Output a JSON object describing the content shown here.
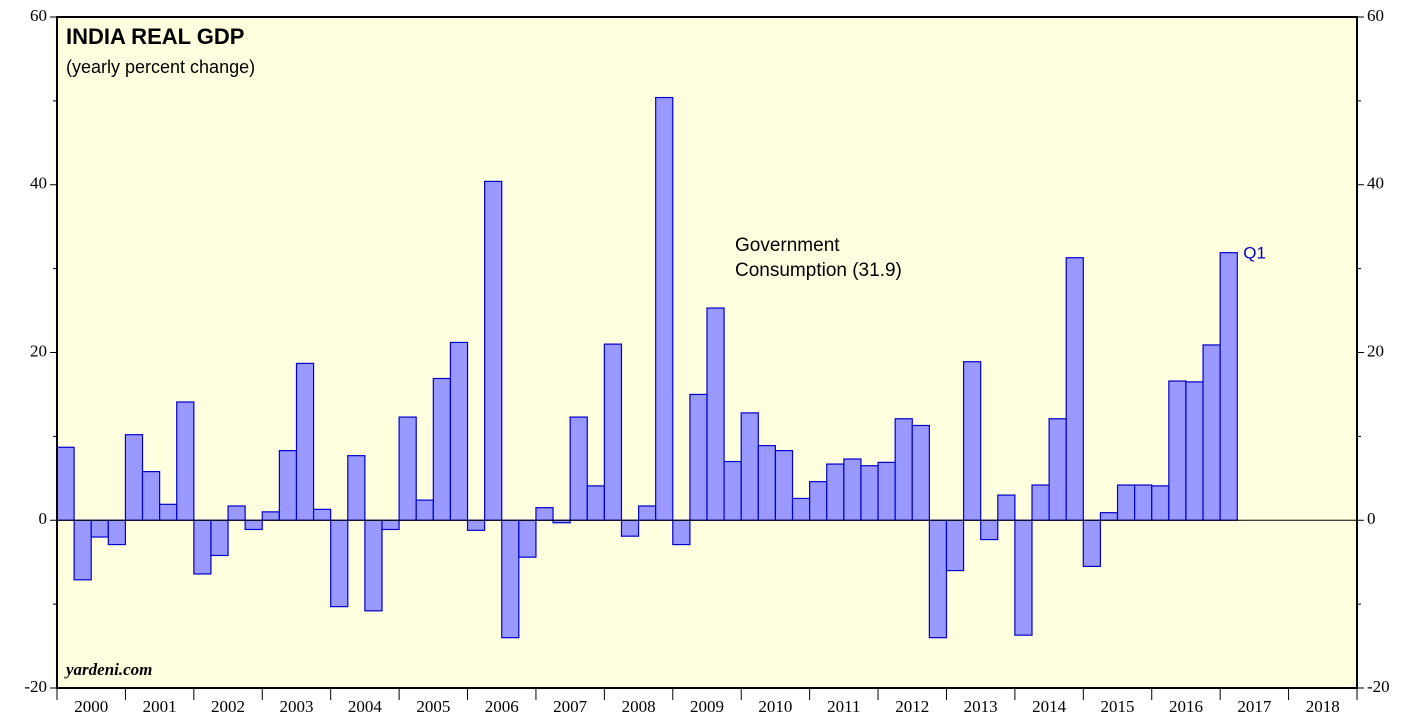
{
  "chart_data": {
    "type": "bar",
    "title": "INDIA REAL GDP",
    "subtitle": "(yearly percent change)",
    "annotation": [
      "Government",
      "Consumption (31.9)"
    ],
    "last_label": "Q1",
    "source": "yardeni.com",
    "years": [
      "2000",
      "2001",
      "2002",
      "2003",
      "2004",
      "2005",
      "2006",
      "2007",
      "2008",
      "2009",
      "2010",
      "2011",
      "2012",
      "2013",
      "2014",
      "2015",
      "2016",
      "2017",
      "2018"
    ],
    "values": [
      8.7,
      -7.1,
      -2.0,
      -2.9,
      10.2,
      5.8,
      1.9,
      14.1,
      -6.4,
      -4.2,
      1.7,
      -1.1,
      1.0,
      8.3,
      18.7,
      1.3,
      -10.3,
      7.7,
      -10.8,
      -1.1,
      12.3,
      2.4,
      16.9,
      21.2,
      -1.2,
      40.4,
      -14.0,
      -4.4,
      1.5,
      -0.3,
      12.3,
      4.1,
      21.0,
      -1.9,
      1.7,
      50.4,
      -2.9,
      15.0,
      25.3,
      7.0,
      12.8,
      8.9,
      8.3,
      2.6,
      4.6,
      6.7,
      7.3,
      6.5,
      6.9,
      12.1,
      11.3,
      -14.0,
      -6.0,
      18.9,
      -2.3,
      3.0,
      -13.7,
      4.2,
      12.1,
      31.3,
      -5.5,
      0.9,
      4.2,
      4.2,
      4.1,
      16.6,
      16.5,
      20.9,
      31.9
    ],
    "color": "#9999ff",
    "edge_color": "#0000cc",
    "background": "#ffffe0",
    "ylim": [
      -20,
      60
    ],
    "yticks": [
      -20,
      0,
      20,
      40,
      60
    ],
    "yminor_ticks": [
      -10,
      10,
      30,
      50
    ]
  }
}
